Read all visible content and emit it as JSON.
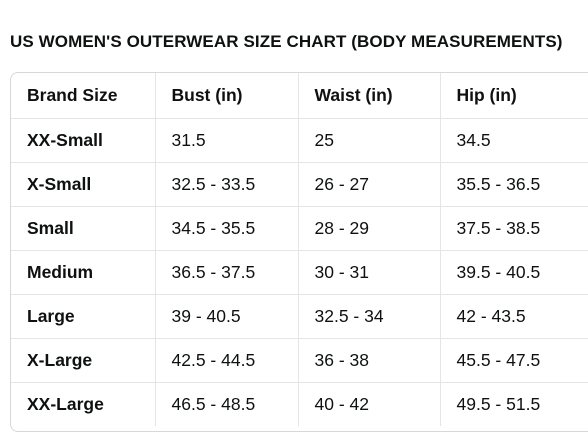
{
  "title": "US WOMEN'S OUTERWEAR SIZE CHART (BODY MEASUREMENTS)",
  "table": {
    "headers": [
      "Brand Size",
      "Bust (in)",
      "Waist (in)",
      "Hip (in)"
    ],
    "rows": [
      [
        "XX-Small",
        "31.5",
        "25",
        "34.5"
      ],
      [
        "X-Small",
        "32.5 - 33.5",
        "26 - 27",
        "35.5 - 36.5"
      ],
      [
        "Small",
        "34.5 - 35.5",
        "28 - 29",
        "37.5 - 38.5"
      ],
      [
        "Medium",
        "36.5 - 37.5",
        "30 - 31",
        "39.5 - 40.5"
      ],
      [
        "Large",
        "39 - 40.5",
        "32.5 - 34",
        "42 - 43.5"
      ],
      [
        "X-Large",
        "42.5 - 44.5",
        "36 - 38",
        "45.5 - 47.5"
      ],
      [
        "XX-Large",
        "46.5 - 48.5",
        "40 - 42",
        "49.5 - 51.5"
      ]
    ]
  }
}
